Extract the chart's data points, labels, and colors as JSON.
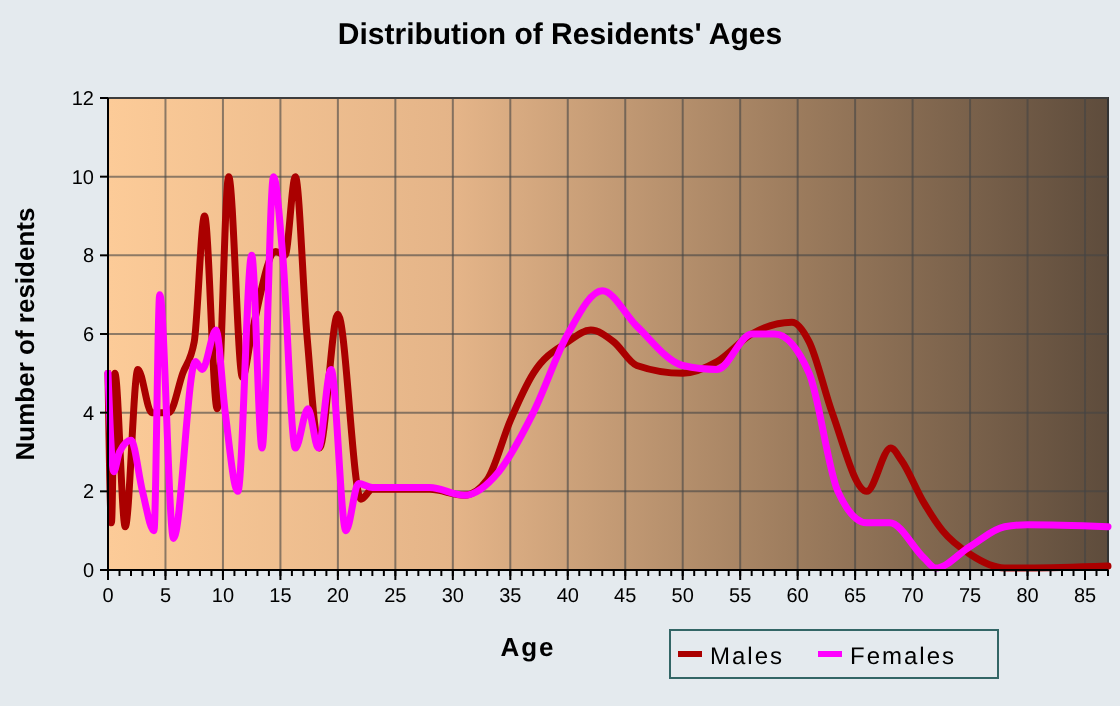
{
  "chart_data": {
    "type": "line",
    "title": "Distribution of Residents' Ages",
    "xlabel": "Age",
    "ylabel": "Number of residents",
    "xlim": [
      0,
      87
    ],
    "xticks": [
      0,
      5,
      10,
      15,
      20,
      25,
      30,
      35,
      40,
      45,
      50,
      55,
      60,
      65,
      70,
      75,
      80,
      85
    ],
    "ylim": [
      0,
      12
    ],
    "yticks": [
      0,
      2,
      4,
      6,
      8,
      10,
      12
    ],
    "grid": true,
    "legend": "bottom right",
    "line_style": "solid",
    "series": [
      {
        "name": "Males",
        "color": "#aa0000",
        "x": [
          0,
          0.3,
          0.6,
          1.5,
          2.6,
          3.8,
          5.3,
          6.5,
          7.5,
          8.4,
          9.5,
          10.5,
          11.7,
          12.5,
          14.6,
          15.4,
          16.3,
          17.3,
          18.4,
          20,
          22,
          23,
          25,
          28,
          31,
          33,
          35,
          37,
          40,
          42,
          44,
          46,
          50,
          53,
          56,
          59.5,
          61,
          63,
          66,
          68.1,
          69,
          71,
          72.6,
          75,
          78,
          80,
          87
        ],
        "values": [
          5,
          1.2,
          5,
          1.1,
          5.1,
          4,
          4,
          5,
          5.8,
          9,
          4.1,
          10,
          4.9,
          6,
          8.1,
          8,
          10,
          6,
          3.1,
          6.5,
          1.8,
          2.05,
          2.05,
          2.05,
          1.9,
          2.3,
          3.8,
          5,
          5.8,
          6.1,
          5.8,
          5.2,
          5,
          5.3,
          6,
          6.3,
          5.8,
          4,
          2,
          3.1,
          2.8,
          1.7,
          1,
          0.4,
          0.05,
          0.05,
          0.1
        ]
      },
      {
        "name": "Females",
        "color": "#ff00ff",
        "x": [
          0,
          0.5,
          1,
          2,
          3,
          4,
          4.5,
          5.7,
          7.6,
          8.2,
          9.4,
          10.2,
          11.3,
          12.5,
          13.4,
          14.4,
          15.2,
          16.3,
          17.4,
          18.3,
          19.4,
          20.7,
          21.8,
          23,
          25,
          28,
          31,
          34,
          37,
          40,
          43,
          46,
          50,
          53,
          56,
          58,
          61,
          63.5,
          66,
          68,
          71,
          72,
          75,
          78,
          80,
          87
        ],
        "values": [
          5,
          2.5,
          3,
          3.3,
          2,
          1,
          7,
          0.8,
          5.3,
          5.1,
          6.1,
          4,
          2,
          8,
          3.1,
          10,
          8,
          3.1,
          4.1,
          3.1,
          5.1,
          1,
          2.2,
          2.1,
          2.1,
          2.1,
          1.9,
          2.5,
          4,
          6,
          7.1,
          6.2,
          5.2,
          5.1,
          6,
          6,
          5,
          2,
          1.2,
          1.2,
          0.3,
          0.05,
          0.6,
          1.1,
          1.15,
          1.1
        ]
      }
    ]
  }
}
